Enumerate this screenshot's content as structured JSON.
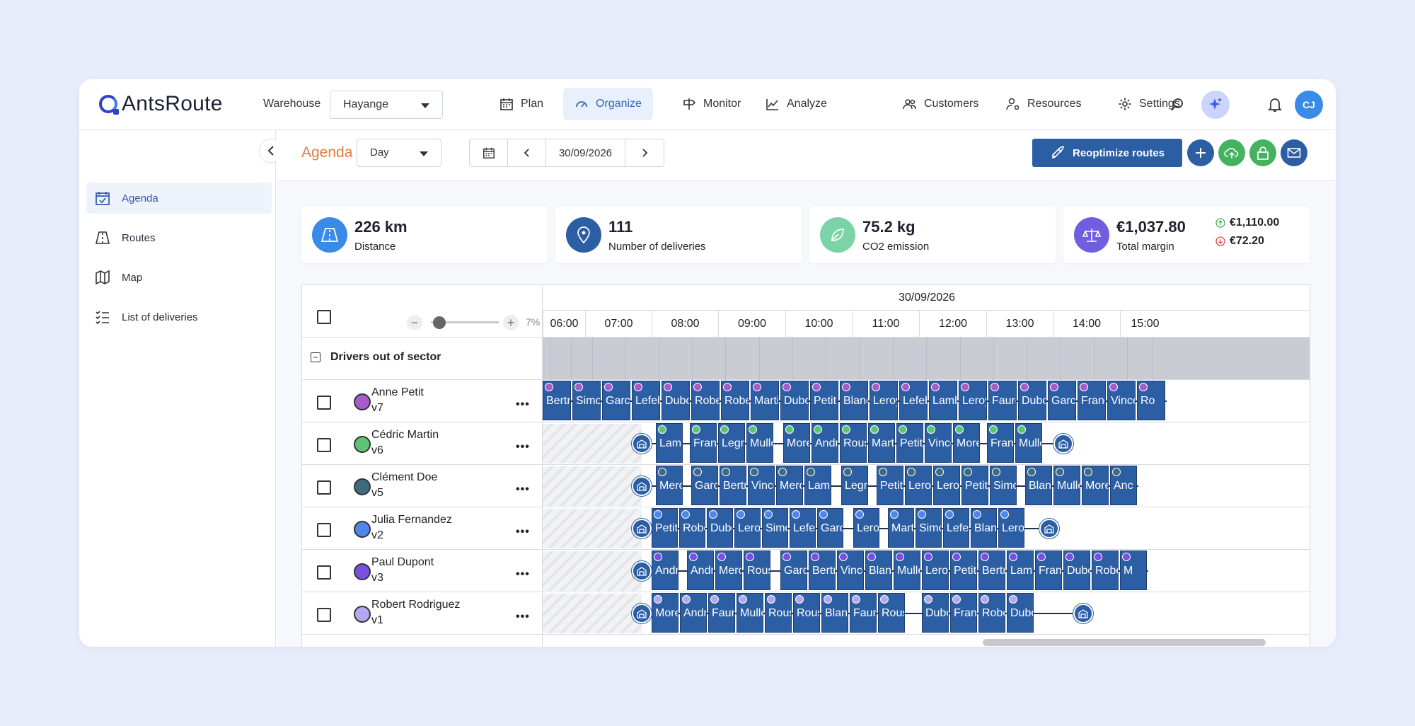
{
  "app": {
    "logo": "AntsRoute",
    "warehouse_label": "Warehouse",
    "warehouse_value": "Hayange",
    "user_initials": "CJ"
  },
  "nav": [
    {
      "label": "Plan",
      "icon": "calendar-icon"
    },
    {
      "label": "Organize",
      "icon": "gauge-icon",
      "active": true
    },
    {
      "label": "Monitor",
      "icon": "signpost-icon"
    },
    {
      "label": "Analyze",
      "icon": "chart-icon"
    },
    {
      "label": "Customers",
      "icon": "users-icon"
    },
    {
      "label": "Resources",
      "icon": "resources-icon"
    },
    {
      "label": "Settings",
      "icon": "gear-icon"
    }
  ],
  "sidebar": [
    {
      "label": "Agenda",
      "icon": "calendar-check-icon",
      "active": true
    },
    {
      "label": "Routes",
      "icon": "routes-icon"
    },
    {
      "label": "Map",
      "icon": "map-icon"
    },
    {
      "label": "List of deliveries",
      "icon": "list-icon"
    }
  ],
  "toolbar": {
    "title": "Agenda",
    "view": "Day",
    "date": "30/09/2026",
    "reoptimize": "Reoptimize routes"
  },
  "kpis": {
    "distance": {
      "value": "226 km",
      "label": "Distance",
      "color": "#3a8be8"
    },
    "deliveries": {
      "value": "111",
      "label": "Number of deliveries",
      "color": "#2b5ea3"
    },
    "co2": {
      "value": "75.2 kg",
      "label": "CO2 emission",
      "color": "#7bd3a8"
    },
    "margin": {
      "value": "€1,037.80",
      "label": "Total margin",
      "up": "€1,110.00",
      "down": "€72.20",
      "color": "#6f5fe0"
    }
  },
  "agenda": {
    "date": "30/09/2026",
    "zoom": "7%",
    "zoom_level": 0.07,
    "hours": [
      "06:00",
      "07:00",
      "08:00",
      "09:00",
      "10:00",
      "11:00",
      "12:00",
      "13:00",
      "14:00",
      "15:00"
    ],
    "group": "Drivers out of sector",
    "drivers": [
      {
        "name": "Anne Petit",
        "vehicle": "v7",
        "color": "#a65cc9",
        "stops": [
          "Bertr",
          "Simor",
          "Garcia",
          "Lefeb",
          "Dubo",
          "Rober",
          "Robe",
          "Martir",
          "Dubo",
          "Petit",
          "Blanc",
          "Leroy",
          "Lefeb",
          "Lamb",
          "Leroy",
          "Faure",
          "Dubo",
          "Garcia",
          "Franc",
          "Vince",
          "Ro"
        ]
      },
      {
        "name": "Cédric Martin",
        "vehicle": "v6",
        "color": "#5cc575",
        "stops": [
          "Lamb",
          "Franc",
          "Legra",
          "Mulle",
          "Morel",
          "Andre",
          "Rouss",
          "Marti",
          "Petit",
          "Vince",
          "Morel",
          "Franc",
          "Mulle"
        ]
      },
      {
        "name": "Clément Doe",
        "vehicle": "v5",
        "color": "#3f6b7d",
        "stops": [
          "Merci",
          "Garcia",
          "Bertra",
          "Vince",
          "Merci",
          "Lamb",
          "Legra",
          "Petit",
          "Leroy",
          "Leroy",
          "Petit l",
          "Simor",
          "Blanc",
          "Mulle",
          "Morel",
          "Anc"
        ]
      },
      {
        "name": "Julia Fernandez",
        "vehicle": "v2",
        "color": "#4f86ea",
        "stops": [
          "Petit",
          "Rober",
          "Dubo",
          "Leroy",
          "Simor",
          "Lefeb",
          "Garci",
          "Leroy",
          "Martir",
          "Simor",
          "Lefeb",
          "Blanc",
          "Leroy"
        ]
      },
      {
        "name": "Paul Dupont",
        "vehicle": "v3",
        "color": "#7a4fe0",
        "stops": [
          "Andre",
          "Andre",
          "Merci",
          "Rouss",
          "Garcia",
          "Bertra",
          "Vince",
          "Blanc",
          "Mulle",
          "Leroy",
          "Petit",
          "Bertr",
          "Lamb",
          "Franc",
          "Dubo",
          "Rober",
          "M"
        ]
      },
      {
        "name": "Robert Rodriguez",
        "vehicle": "v1",
        "color": "#b3a8ef",
        "stops": [
          "Morel",
          "Andre",
          "Faure",
          "Mulle",
          "Rouss",
          "Rouss",
          "Blanc",
          "Faure",
          "Rouss",
          "Dubo",
          "Franc",
          "Rober",
          "Dubo"
        ]
      }
    ]
  }
}
